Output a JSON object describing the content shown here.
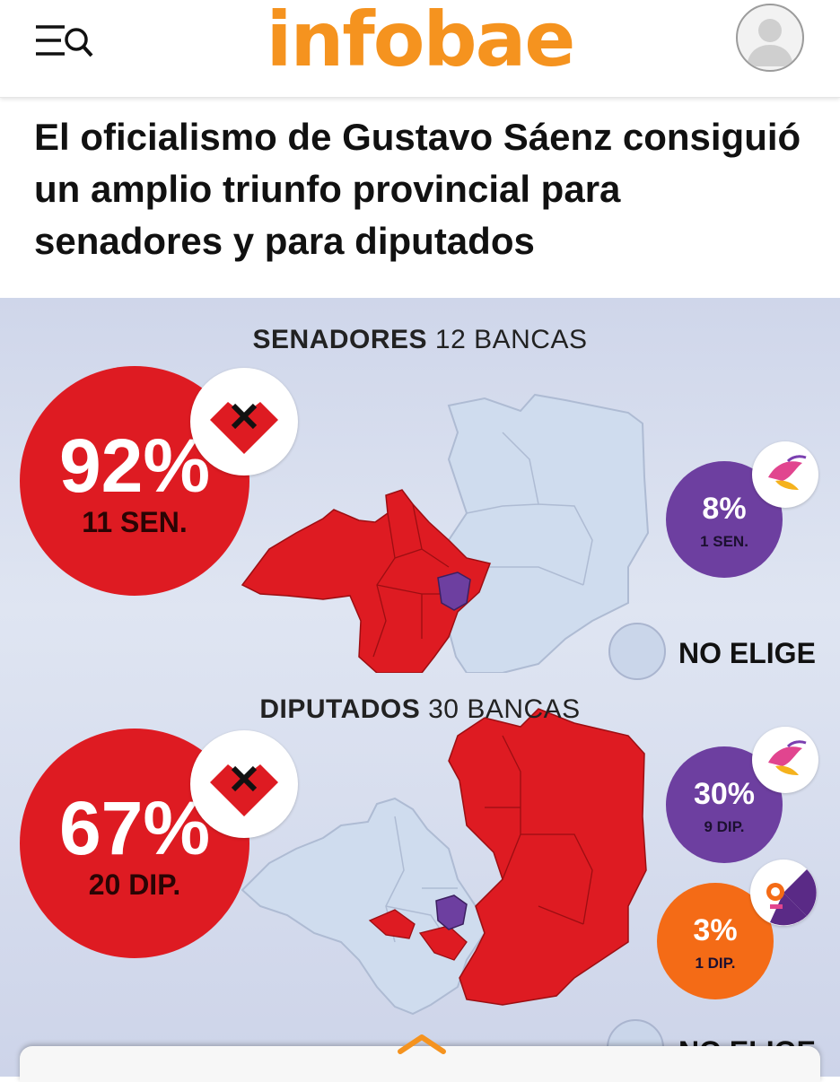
{
  "header": {
    "logo_text": "infobae",
    "brand_color": "#f5931f",
    "menu_icon": "menu-search-icon",
    "avatar_icon": "user-avatar-icon"
  },
  "article": {
    "headline": "El oficialismo de Gustavo Sáenz consiguió un amplio triunfo provincial para senadores y para diputados"
  },
  "infographic": {
    "senadores": {
      "title_bold": "SENADORES",
      "title_rest": "12 BANCAS",
      "winner": {
        "percent": "92%",
        "seats": "11 SEN.",
        "color": "#de1b22",
        "logo_icon": "heart-x-logo-icon"
      },
      "others": [
        {
          "percent": "8%",
          "seats": "1 SEN.",
          "color": "#6d3fa0",
          "logo_icon": "bird-party-logo-icon"
        }
      ],
      "no_elige": "NO ELIGE"
    },
    "diputados": {
      "title_bold": "DIPUTADOS",
      "title_rest": "30 BANCAS",
      "winner": {
        "percent": "67%",
        "seats": "20 DIP.",
        "color": "#de1b22",
        "logo_icon": "heart-x-logo-icon"
      },
      "others": [
        {
          "percent": "30%",
          "seats": "9 DIP.",
          "color": "#6d3fa0",
          "logo_icon": "bird-party-logo-icon"
        },
        {
          "percent": "3%",
          "seats": "1 DIP.",
          "color": "#f46b16",
          "logo_icon": "split-party-logo-icon"
        }
      ],
      "no_elige": "NO ELIGE"
    },
    "map_colors": {
      "red": "#de1b22",
      "purple": "#6d3fa0",
      "light": "#cfdcee"
    }
  },
  "footer": {
    "expand_icon": "chevron-up-icon"
  }
}
